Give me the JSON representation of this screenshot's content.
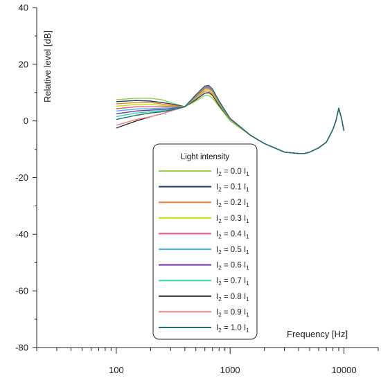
{
  "chart_data": {
    "type": "line",
    "xscale": "log",
    "xlim": [
      20,
      20000
    ],
    "ylim": [
      -80,
      40
    ],
    "xlabel": "Frequency [Hz]",
    "ylabel": "Relative level [dB]",
    "x_ticks": [
      {
        "value": 100,
        "label": "100"
      },
      {
        "value": 1000,
        "label": "1000"
      },
      {
        "value": 10000,
        "label": "10000"
      }
    ],
    "y_ticks": [
      {
        "value": 40,
        "label": "40"
      },
      {
        "value": 20,
        "label": "20"
      },
      {
        "value": 0,
        "label": "0"
      },
      {
        "value": -20,
        "label": "-20"
      },
      {
        "value": -40,
        "label": "-40"
      },
      {
        "value": -60,
        "label": "-60"
      },
      {
        "value": -80,
        "label": "-80"
      }
    ],
    "grid": false,
    "legend": {
      "title": "Light intensity",
      "position": "center-bottom"
    },
    "x": [
      100,
      150,
      200,
      250,
      300,
      400,
      500,
      600,
      650,
      700,
      800,
      1000,
      1500,
      2000,
      3000,
      4000,
      4500,
      5000,
      6000,
      7000,
      8000,
      8500,
      9000,
      9500,
      10000
    ],
    "series": [
      {
        "name": "I2 = 0.0 I1",
        "label_main": "I",
        "label_sub1": "2",
        "label_mid": " = 0.0 I",
        "label_sub2": "1",
        "color": "#92d050",
        "values": [
          7.5,
          8.0,
          8.0,
          7.5,
          6.5,
          5.0,
          7.0,
          9.0,
          9.0,
          8.0,
          5.0,
          0.0,
          -5.0,
          -8.0,
          -11.0,
          -11.5,
          -11.5,
          -11.0,
          -9.5,
          -7.5,
          -3.0,
          0.0,
          4.5,
          1.0,
          -3.5
        ]
      },
      {
        "name": "I2 = 0.1 I1",
        "label_main": "I",
        "label_sub1": "2",
        "label_mid": " = 0.1 I",
        "label_sub2": "1",
        "color": "#1f3864",
        "values": [
          6.8,
          7.2,
          7.0,
          6.5,
          6.0,
          5.0,
          7.5,
          9.8,
          10.0,
          9.0,
          5.5,
          0.5,
          -5.0,
          -8.0,
          -11.0,
          -11.5,
          -11.5,
          -11.0,
          -9.5,
          -7.5,
          -3.0,
          0.0,
          4.5,
          1.0,
          -3.5
        ]
      },
      {
        "name": "I2 = 0.2 I1",
        "label_main": "I",
        "label_sub1": "2",
        "label_mid": " = 0.2 I",
        "label_sub2": "1",
        "color": "#ed7d31",
        "values": [
          6.0,
          6.5,
          6.5,
          6.0,
          5.5,
          5.0,
          8.0,
          10.5,
          10.5,
          9.5,
          6.0,
          0.5,
          -5.0,
          -8.0,
          -11.0,
          -11.5,
          -11.5,
          -11.0,
          -9.5,
          -7.5,
          -3.0,
          0.0,
          4.5,
          1.0,
          -3.5
        ]
      },
      {
        "name": "I2 = 0.3 I1",
        "label_main": "I",
        "label_sub1": "2",
        "label_mid": " = 0.3 I",
        "label_sub2": "1",
        "color": "#c5e000",
        "values": [
          5.2,
          5.8,
          5.8,
          5.5,
          5.2,
          5.0,
          8.2,
          11.0,
          11.0,
          10.0,
          6.2,
          0.6,
          -5.0,
          -8.0,
          -11.0,
          -11.5,
          -11.5,
          -11.0,
          -9.5,
          -7.5,
          -3.0,
          0.0,
          4.5,
          1.0,
          -3.5
        ]
      },
      {
        "name": "I2 = 0.4 I1",
        "label_main": "I",
        "label_sub1": "2",
        "label_mid": " = 0.4 I",
        "label_sub2": "1",
        "color": "#e84c8b",
        "values": [
          4.3,
          5.0,
          5.0,
          5.0,
          5.0,
          5.0,
          8.5,
          11.5,
          11.5,
          10.5,
          6.5,
          0.7,
          -5.0,
          -8.0,
          -11.0,
          -11.5,
          -11.5,
          -11.0,
          -9.5,
          -7.5,
          -3.0,
          0.0,
          4.5,
          1.0,
          -3.5
        ]
      },
      {
        "name": "I2 = 0.5 I1",
        "label_main": "I",
        "label_sub1": "2",
        "label_mid": " = 0.5 I",
        "label_sub2": "1",
        "color": "#41b6e6",
        "values": [
          3.5,
          4.2,
          4.3,
          4.5,
          4.6,
          5.0,
          8.8,
          11.8,
          11.8,
          10.8,
          6.6,
          0.7,
          -5.0,
          -8.0,
          -11.0,
          -11.5,
          -11.5,
          -11.0,
          -9.5,
          -7.5,
          -3.0,
          0.0,
          4.5,
          1.0,
          -3.5
        ]
      },
      {
        "name": "I2 = 0.6 I1",
        "label_main": "I",
        "label_sub1": "2",
        "label_mid": " = 0.6 I",
        "label_sub2": "1",
        "color": "#7030a0",
        "values": [
          2.5,
          3.5,
          3.8,
          4.0,
          4.3,
          5.0,
          9.0,
          12.0,
          12.0,
          11.0,
          6.8,
          0.8,
          -5.0,
          -8.0,
          -11.0,
          -11.5,
          -11.5,
          -11.0,
          -9.5,
          -7.5,
          -3.0,
          0.0,
          4.5,
          1.0,
          -3.5
        ]
      },
      {
        "name": "I2 = 0.7 I1",
        "label_main": "I",
        "label_sub1": "2",
        "label_mid": " = 0.7 I",
        "label_sub2": "1",
        "color": "#2ed9a6",
        "values": [
          1.5,
          2.8,
          3.2,
          3.6,
          4.0,
          5.0,
          9.2,
          12.2,
          12.3,
          11.2,
          6.9,
          0.8,
          -5.0,
          -8.0,
          -11.0,
          -11.5,
          -11.5,
          -11.0,
          -9.5,
          -7.5,
          -3.0,
          0.0,
          4.5,
          1.0,
          -3.5
        ]
      },
      {
        "name": "I2 = 0.8 I1",
        "label_main": "I",
        "label_sub1": "2",
        "label_mid": " = 0.8 I",
        "label_sub2": "1",
        "color": "#2b2b2b",
        "values": [
          -2.5,
          0.0,
          1.5,
          2.5,
          3.5,
          5.0,
          9.0,
          12.0,
          12.2,
          11.0,
          6.8,
          0.8,
          -5.0,
          -8.0,
          -11.0,
          -11.5,
          -11.5,
          -11.0,
          -9.5,
          -7.5,
          -3.0,
          0.0,
          4.5,
          1.0,
          -3.5
        ]
      },
      {
        "name": "I2 = 0.9 I1",
        "label_main": "I",
        "label_sub1": "2",
        "label_mid": " = 0.9 I",
        "label_sub2": "1",
        "color": "#f08080",
        "values": [
          -1.5,
          0.5,
          1.5,
          2.5,
          3.5,
          5.0,
          9.0,
          12.0,
          12.2,
          11.0,
          6.8,
          0.8,
          -5.0,
          -8.0,
          -11.0,
          -11.5,
          -11.5,
          -11.0,
          -9.5,
          -7.5,
          -3.0,
          0.0,
          4.5,
          1.0,
          -3.5
        ]
      },
      {
        "name": "I2 = 1.0 I1",
        "label_main": "I",
        "label_sub1": "2",
        "label_mid": " = 1.0 I",
        "label_sub2": "1",
        "color": "#1a6e73",
        "values": [
          0.5,
          2.0,
          2.8,
          3.2,
          3.8,
          5.0,
          9.2,
          12.3,
          12.5,
          11.3,
          7.0,
          0.9,
          -5.0,
          -8.0,
          -11.0,
          -11.5,
          -11.5,
          -11.0,
          -9.5,
          -7.5,
          -3.0,
          0.0,
          4.5,
          1.0,
          -3.5
        ]
      }
    ]
  }
}
